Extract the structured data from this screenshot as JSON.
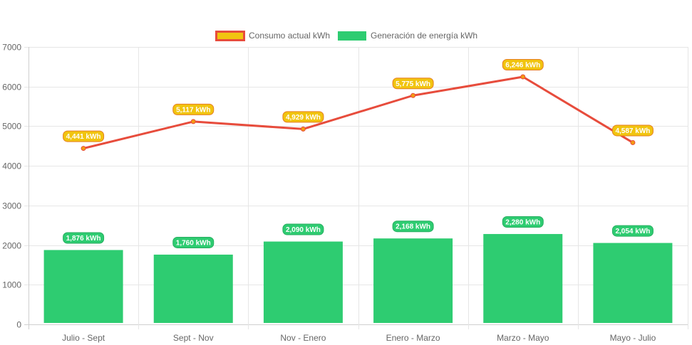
{
  "chart_data": {
    "type": "bar",
    "categories": [
      "Julio - Sept",
      "Sept - Nov",
      "Nov - Enero",
      "Enero - Marzo",
      "Marzo - Mayo",
      "Mayo - Julio"
    ],
    "series": [
      {
        "name": "Consumo actual kWh",
        "type": "line",
        "values": [
          4441,
          5117,
          4929,
          5775,
          6246,
          4587
        ],
        "labels": [
          "4,441 kWh",
          "5,117 kWh",
          "4,929 kWh",
          "5,775 kWh",
          "6,246 kWh",
          "4,587 kWh"
        ],
        "color": "#e74c3c",
        "label_bg": "#f1c40f",
        "label_border": "#e67e22"
      },
      {
        "name": "Generación de energía kWh",
        "type": "bar",
        "values": [
          1876,
          1760,
          2090,
          2168,
          2280,
          2054
        ],
        "labels": [
          "1,876 kWh",
          "1,760 kWh",
          "2,090 kWh",
          "2,168 kWh",
          "2,280 kWh",
          "2,054 kWh"
        ],
        "color": "#2ecc71",
        "label_bg": "#2ecc71",
        "label_border": "#27ae60"
      }
    ],
    "y_ticks": [
      "0",
      "1000",
      "2000",
      "3000",
      "4000",
      "5000",
      "6000",
      "7000"
    ],
    "ylim": [
      0,
      7000
    ],
    "grid": true,
    "legend_position": "top",
    "title": "",
    "xlabel": "",
    "ylabel": ""
  }
}
